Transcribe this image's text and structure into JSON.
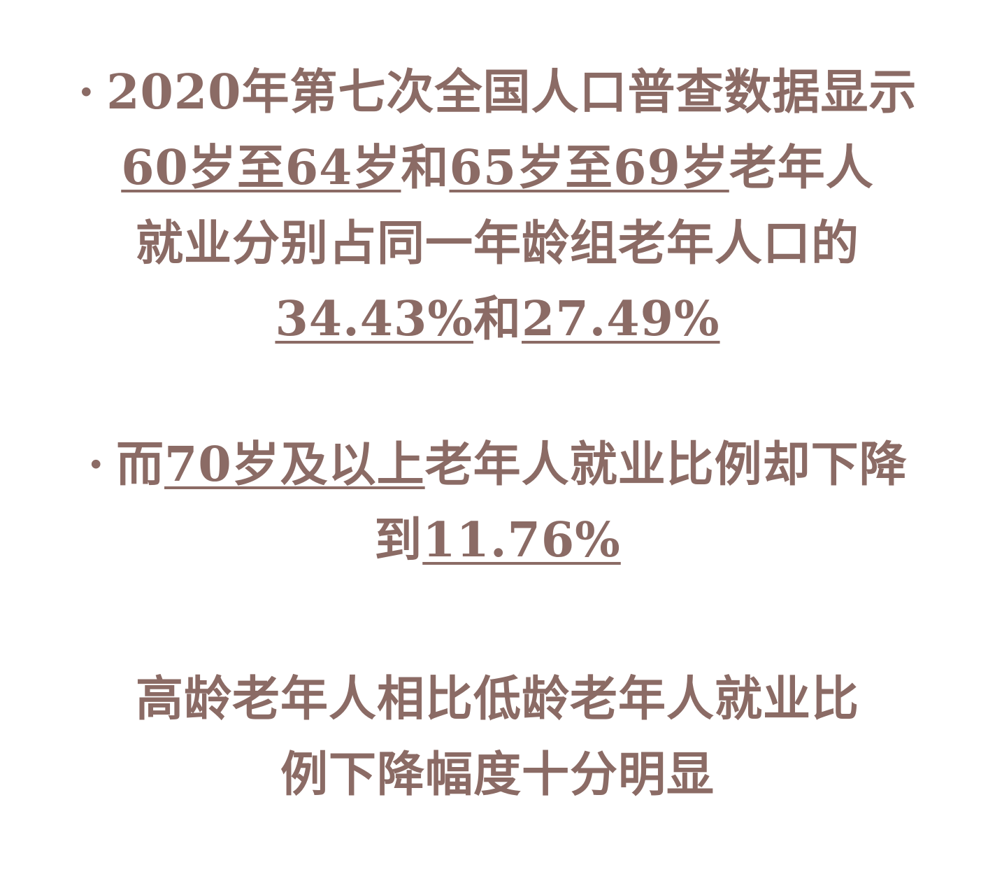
{
  "bullet_symbol": "·",
  "block1": {
    "line1_text": "2020年第七次全国人口普查数据显示",
    "line2": {
      "u1": "60岁至64岁",
      "t1": "和",
      "u2": "65岁至69岁",
      "t2": "老年人"
    },
    "line3_text": "就业分别占同一年龄组老年人口的",
    "line4": {
      "u1": "34.43%",
      "t1": "和",
      "u2": "27.49%"
    }
  },
  "block2": {
    "line1": {
      "t1": "而",
      "u1": "70岁及以上",
      "t2": "老年人就业比例却下降"
    },
    "line2": {
      "t1": "到",
      "u1": "11.76%"
    }
  },
  "block3": {
    "line1_text": "高龄老年人相比低龄老年人就业比",
    "line2_text": "例下降幅度十分明显"
  },
  "colors": {
    "text": "#8b6b65",
    "background": "#ffffff"
  }
}
